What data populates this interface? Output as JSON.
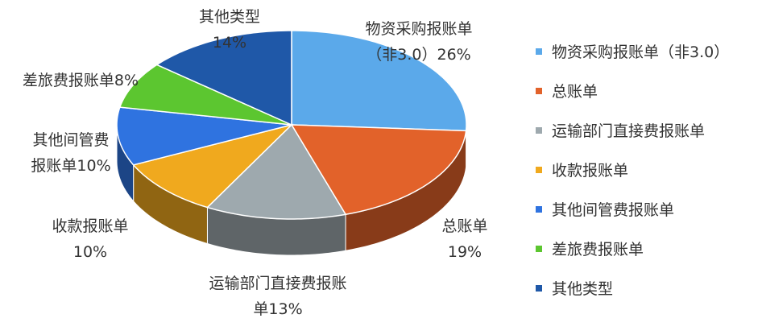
{
  "chart_data": {
    "type": "pie",
    "categories": [
      "物资采购报账单（非3.0）",
      "总账单",
      "运输部门直接费报账单",
      "收款报账单",
      "其他间管费报账单",
      "差旅费报账单",
      "其他类型"
    ],
    "values": [
      26,
      19,
      13,
      10,
      10,
      8,
      14
    ],
    "value_labels": [
      "26%",
      "19%",
      "13%",
      "10%",
      "10%",
      "8%",
      "14%"
    ],
    "colors": [
      "#5ba9ea",
      "#e2622a",
      "#9ea9ae",
      "#f0a91e",
      "#2f73e0",
      "#5cc630",
      "#1f58a8"
    ],
    "legend": "right"
  }
}
